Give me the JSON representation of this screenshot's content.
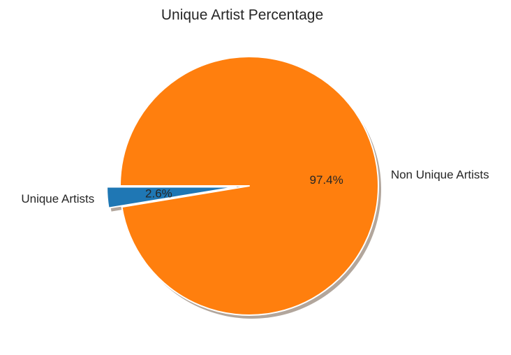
{
  "chart_data": {
    "type": "pie",
    "title": "Unique Artist Percentage",
    "slices": [
      {
        "label": "Unique Artists",
        "value": 2.6,
        "pct_label": "2.6%",
        "color": "#1f77b4",
        "exploded": true
      },
      {
        "label": "Non Unique Artists",
        "value": 97.4,
        "pct_label": "97.4%",
        "color": "#ff7f0e",
        "exploded": false
      }
    ],
    "start_angle_deg": 180,
    "direction": "counterclockwise",
    "shadow": true,
    "legend": "none",
    "grid": false
  }
}
